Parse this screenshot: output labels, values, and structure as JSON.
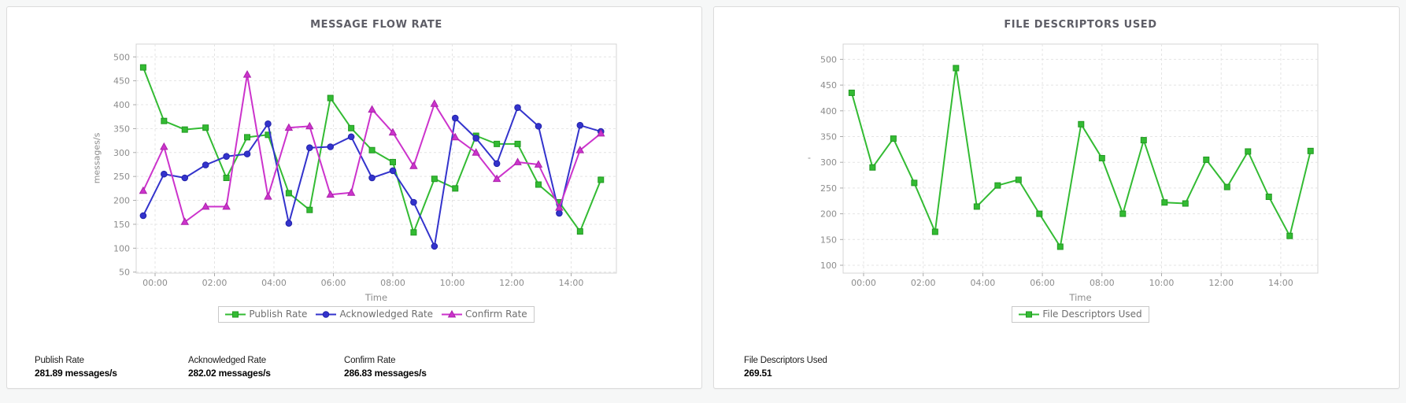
{
  "panels": [
    {
      "title": "MESSAGE FLOW RATE",
      "xlabel": "Time",
      "ylabel": "messages/s",
      "stats": [
        {
          "label": "Publish Rate",
          "value": "281.89 messages/s"
        },
        {
          "label": "Acknowledged Rate",
          "value": "282.02 messages/s"
        },
        {
          "label": "Confirm Rate",
          "value": "286.83 messages/s"
        }
      ]
    },
    {
      "title": "FILE DESCRIPTORS USED",
      "xlabel": "Time",
      "ylabel": "'",
      "stats": [
        {
          "label": "File Descriptors Used",
          "value": "269.51"
        }
      ]
    }
  ],
  "chart_data": [
    {
      "type": "line",
      "title": "MESSAGE FLOW RATE",
      "xlabel": "Time",
      "ylabel": "messages/s",
      "grid": "dashed",
      "legend_position": "bottom",
      "x_tick_labels": [
        "00:00",
        "02:00",
        "04:00",
        "06:00",
        "08:00",
        "10:00",
        "12:00",
        "14:00"
      ],
      "x_tick_hours": [
        0,
        2,
        4,
        6,
        8,
        10,
        12,
        14
      ],
      "y_ticks": [
        50,
        100,
        150,
        200,
        250,
        300,
        350,
        400,
        450,
        500
      ],
      "ylim": [
        50,
        527
      ],
      "x_hours": [
        -0.4,
        0.3,
        1.0,
        1.7,
        2.4,
        3.1,
        3.8,
        4.5,
        5.2,
        5.9,
        6.6,
        7.3,
        8.0,
        8.7,
        9.4,
        10.1,
        10.8,
        11.5,
        12.2,
        12.9,
        13.6,
        14.3,
        15.0
      ],
      "series": [
        {
          "name": "Publish Rate",
          "color": "#33bb33",
          "edge": "#229922",
          "marker": "square",
          "values": [
            478,
            366,
            348,
            352,
            247,
            332,
            337,
            215,
            180,
            414,
            351,
            305,
            280,
            133,
            245,
            225,
            335,
            318,
            318,
            233,
            196,
            135,
            243
          ]
        },
        {
          "name": "Acknowledged Rate",
          "color": "#3333cc",
          "edge": "#2222aa",
          "marker": "circle",
          "values": [
            168,
            255,
            247,
            274,
            292,
            297,
            360,
            152,
            310,
            312,
            333,
            247,
            262,
            196,
            104,
            372,
            330,
            277,
            394,
            355,
            173,
            357,
            344
          ]
        },
        {
          "name": "Confirm Rate",
          "color": "#cc33cc",
          "edge": "#aa22aa",
          "marker": "triangle",
          "values": [
            220,
            312,
            155,
            187,
            187,
            463,
            208,
            352,
            355,
            212,
            216,
            390,
            342,
            272,
            402,
            332,
            300,
            245,
            280,
            275,
            185,
            305,
            340
          ]
        }
      ]
    },
    {
      "type": "line",
      "title": "FILE DESCRIPTORS USED",
      "xlabel": "Time",
      "ylabel": "'",
      "grid": "dashed",
      "legend_position": "bottom",
      "x_tick_labels": [
        "00:00",
        "02:00",
        "04:00",
        "06:00",
        "08:00",
        "10:00",
        "12:00",
        "14:00"
      ],
      "x_tick_hours": [
        0,
        2,
        4,
        6,
        8,
        10,
        12,
        14
      ],
      "y_ticks": [
        100,
        150,
        200,
        250,
        300,
        350,
        400,
        450,
        500
      ],
      "ylim": [
        100,
        530
      ],
      "x_hours": [
        -0.4,
        0.3,
        1.0,
        1.7,
        2.4,
        3.1,
        3.8,
        4.5,
        5.2,
        5.9,
        6.6,
        7.3,
        8.0,
        8.7,
        9.4,
        10.1,
        10.8,
        11.5,
        12.2,
        12.9,
        13.6,
        14.3,
        15.0
      ],
      "series": [
        {
          "name": "File Descriptors Used",
          "color": "#33bb33",
          "edge": "#229922",
          "marker": "square",
          "values": [
            435,
            290,
            346,
            260,
            165,
            483,
            214,
            255,
            266,
            200,
            136,
            374,
            308,
            200,
            343,
            222,
            220,
            305,
            252,
            321,
            233,
            157,
            322
          ]
        }
      ]
    }
  ]
}
